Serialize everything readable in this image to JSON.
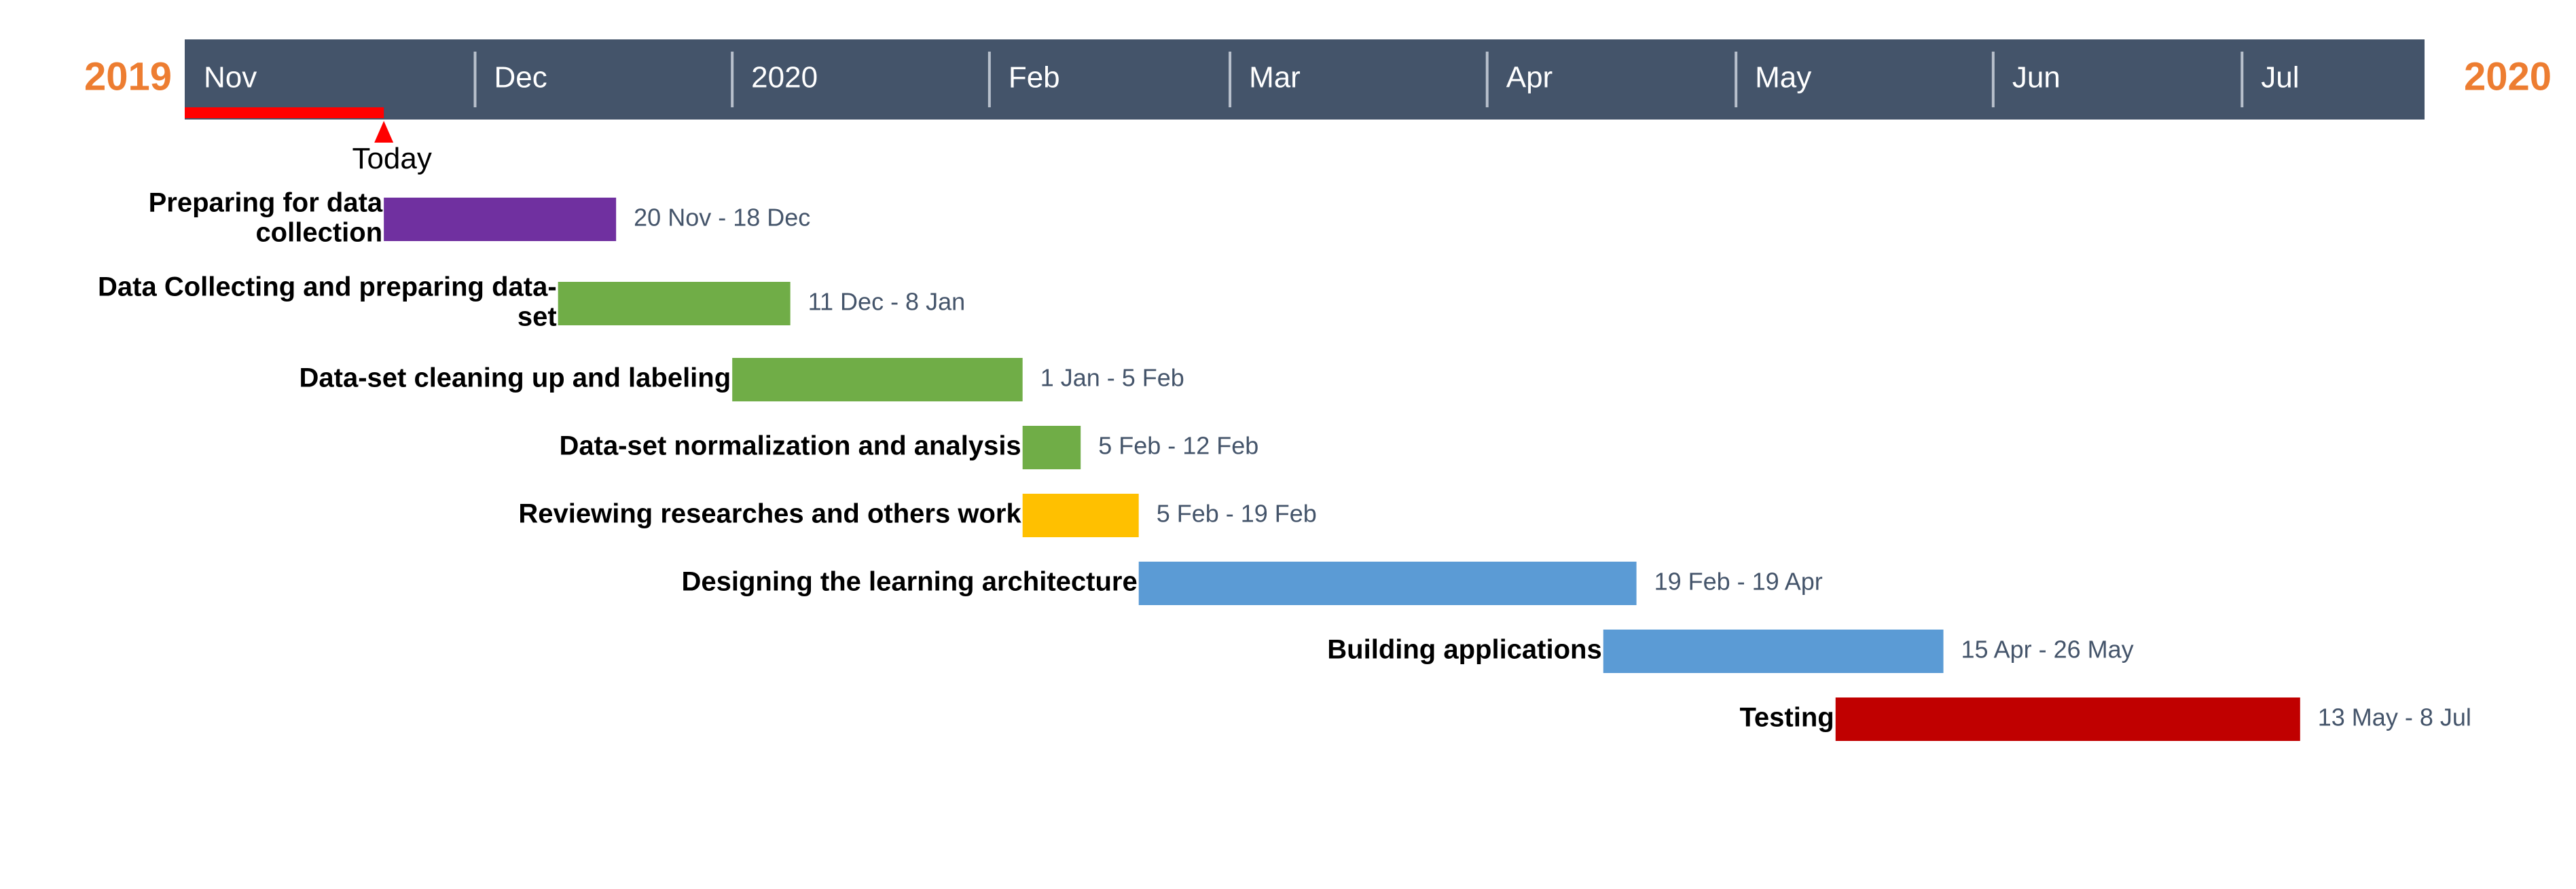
{
  "colors": {
    "header_bg": "#44546a",
    "header_text": "#ffffff",
    "header_divider": "#b8c0cc",
    "year": "#ed7d31",
    "date_text": "#44546a",
    "today": "#ff0000",
    "purple": "#7030a0",
    "green": "#70ad47",
    "gold": "#ffc000",
    "blue": "#5b9bd5",
    "red": "#c00000"
  },
  "chart_data": {
    "type": "gantt",
    "start_year": "2019",
    "end_year": "2020",
    "months": [
      "Nov",
      "Dec",
      "2020",
      "Feb",
      "Mar",
      "Apr",
      "May",
      "Jun",
      "Jul"
    ],
    "today": {
      "label": "Today",
      "date": "2019-11-20"
    },
    "tasks": [
      {
        "name": "Preparing for data collection",
        "lines": [
          "Preparing for data",
          "collection"
        ],
        "start": "2019-11-20",
        "end": "2019-12-18",
        "range": "20 Nov - 18 Dec",
        "color": "purple"
      },
      {
        "name": "Data Collecting and preparing data-set",
        "lines": [
          "Data Collecting and preparing data-",
          "set"
        ],
        "start": "2019-12-11",
        "end": "2020-01-08",
        "range": "11 Dec - 8 Jan",
        "color": "green"
      },
      {
        "name": "Data-set cleaning up and labeling",
        "lines": [
          "Data-set cleaning up and labeling"
        ],
        "start": "2020-01-01",
        "end": "2020-02-05",
        "range": "1 Jan - 5 Feb",
        "color": "green"
      },
      {
        "name": "Data-set normalization and analysis",
        "lines": [
          "Data-set normalization and analysis"
        ],
        "start": "2020-02-05",
        "end": "2020-02-12",
        "range": "5 Feb - 12 Feb",
        "color": "green"
      },
      {
        "name": "Reviewing researches and others work",
        "lines": [
          "Reviewing researches and others work"
        ],
        "start": "2020-02-05",
        "end": "2020-02-19",
        "range": "5 Feb - 19 Feb",
        "color": "gold"
      },
      {
        "name": "Designing the learning architecture",
        "lines": [
          "Designing the learning architecture"
        ],
        "start": "2020-02-19",
        "end": "2020-04-19",
        "range": "19 Feb - 19 Apr",
        "color": "blue"
      },
      {
        "name": "Building applications",
        "lines": [
          "Building applications"
        ],
        "start": "2020-04-15",
        "end": "2020-05-26",
        "range": "15 Apr - 26 May",
        "color": "blue"
      },
      {
        "name": "Testing",
        "lines": [
          "Testing"
        ],
        "start": "2020-05-13",
        "end": "2020-07-08",
        "range": "13 May - 8 Jul",
        "color": "red"
      }
    ]
  }
}
